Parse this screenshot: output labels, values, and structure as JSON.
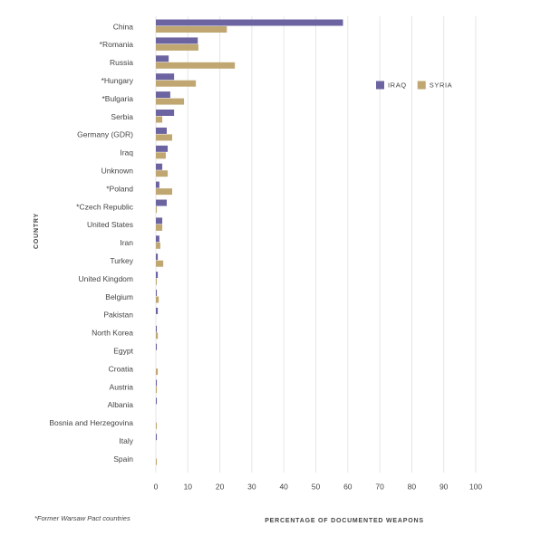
{
  "chart_data": {
    "type": "bar",
    "orientation": "horizontal",
    "x_label": "PERCENTAGE OF DOCUMENTED WEAPONS",
    "y_label": "COUNTRY",
    "footnote": "*Former Warsaw Pact countries",
    "categories": [
      "China",
      "*Romania",
      "Russia",
      "*Hungary",
      "*Bulgaria",
      "Serbia",
      "Germany (GDR)",
      "Iraq",
      "Unknown",
      "*Poland",
      "*Czech Republic",
      "United States",
      "Iran",
      "Turkey",
      "United Kingdom",
      "Belgium",
      "Pakistan",
      "North Korea",
      "Egypt",
      "Croatia",
      "Austria",
      "Albania",
      "Bosnia and Herzegovina",
      "Italy",
      "Spain"
    ],
    "series": [
      {
        "name": "IRAQ",
        "color": "#6b64a0",
        "values": [
          58.5,
          13.1,
          4,
          5.7,
          4.5,
          5.7,
          3.4,
          3.7,
          2,
          1.1,
          3.4,
          2,
          1.1,
          0.6,
          0.6,
          0.3,
          0.6,
          0.3,
          0.3,
          0,
          0.3,
          0.3,
          0,
          0.3,
          0
        ]
      },
      {
        "name": "SYRIA",
        "color": "#c0a772",
        "values": [
          22.2,
          13.3,
          24.7,
          12.5,
          8.8,
          2,
          5.1,
          3.1,
          3.7,
          5.1,
          0.3,
          2,
          1.4,
          2.3,
          0.3,
          0.9,
          0,
          0.6,
          0,
          0.6,
          0.3,
          0,
          0.3,
          0,
          0.3
        ]
      }
    ],
    "xlim": [
      0,
      100
    ],
    "xticks": [
      0,
      10,
      20,
      30,
      40,
      50,
      60,
      70,
      80,
      90,
      100
    ],
    "grid": true,
    "legend": "upper-right"
  }
}
